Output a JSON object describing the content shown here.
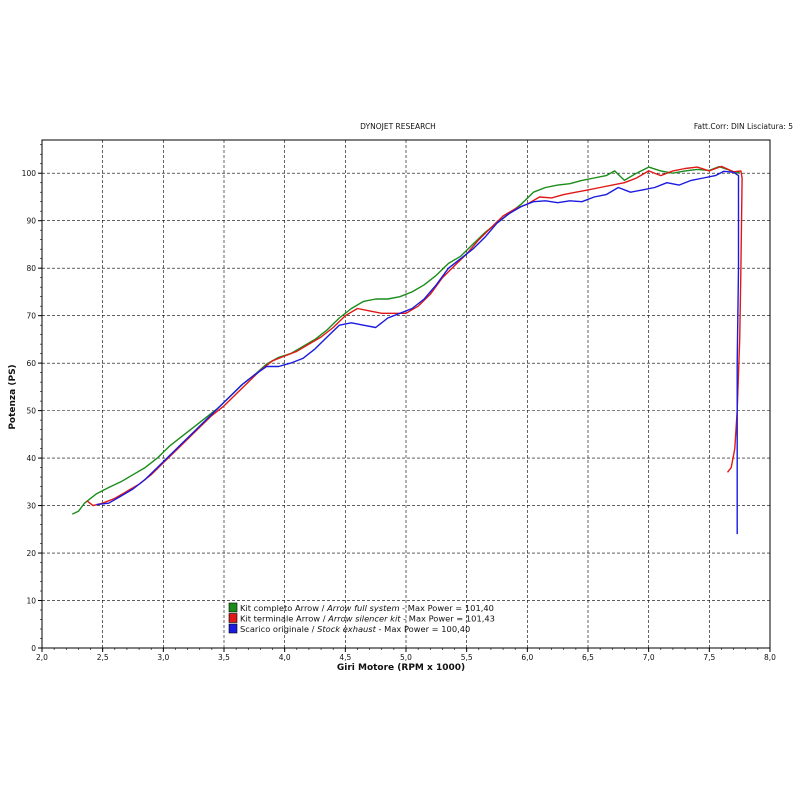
{
  "header": {
    "center": "DYNOJET RESEARCH",
    "right": "Fatt.Corr: DIN  Lisciatura: 5"
  },
  "chart_data": {
    "type": "line",
    "xlabel": "Giri Motore (RPM x 1000)",
    "ylabel": "Potenza (PS)",
    "xlim": [
      2.0,
      8.0
    ],
    "ylim": [
      0,
      107
    ],
    "x_ticks": [
      2.0,
      2.5,
      3.0,
      3.5,
      4.0,
      4.5,
      5.0,
      5.5,
      6.0,
      6.5,
      7.0,
      7.5,
      8.0
    ],
    "x_tick_labels": [
      "2,0",
      "2,5",
      "3,0",
      "3,5",
      "4,0",
      "4,5",
      "5,0",
      "5,5",
      "6,0",
      "6,5",
      "7,0",
      "7,5",
      "8,0"
    ],
    "y_ticks": [
      0,
      10,
      20,
      30,
      40,
      50,
      60,
      70,
      80,
      90,
      100
    ],
    "y_tick_labels": [
      "0",
      "10",
      "20",
      "30",
      "40",
      "50",
      "60",
      "70",
      "80",
      "90",
      "100"
    ],
    "grid": true,
    "legend_position": "bottom-center",
    "series": [
      {
        "color": "#1a8c1a",
        "legend_parts": [
          {
            "text": "Kit completo Arrow / ",
            "italic": false
          },
          {
            "text": "Arrow full system",
            "italic": true
          },
          {
            "text": " - Max Power = 101,40",
            "italic": false
          }
        ],
        "points": [
          [
            2.25,
            28.2
          ],
          [
            2.3,
            28.8
          ],
          [
            2.35,
            30.5
          ],
          [
            2.45,
            32.5
          ],
          [
            2.55,
            33.8
          ],
          [
            2.65,
            35.0
          ],
          [
            2.75,
            36.5
          ],
          [
            2.85,
            38.0
          ],
          [
            2.95,
            40.0
          ],
          [
            3.05,
            42.5
          ],
          [
            3.15,
            44.5
          ],
          [
            3.25,
            46.5
          ],
          [
            3.35,
            48.5
          ],
          [
            3.45,
            50.5
          ],
          [
            3.55,
            53.0
          ],
          [
            3.65,
            55.5
          ],
          [
            3.75,
            57.5
          ],
          [
            3.85,
            59.8
          ],
          [
            3.95,
            61.2
          ],
          [
            4.05,
            62.0
          ],
          [
            4.15,
            63.5
          ],
          [
            4.25,
            65.0
          ],
          [
            4.35,
            67.0
          ],
          [
            4.45,
            69.5
          ],
          [
            4.55,
            71.5
          ],
          [
            4.65,
            73.0
          ],
          [
            4.75,
            73.5
          ],
          [
            4.85,
            73.5
          ],
          [
            4.95,
            74.0
          ],
          [
            5.05,
            75.0
          ],
          [
            5.15,
            76.5
          ],
          [
            5.25,
            78.5
          ],
          [
            5.35,
            81.0
          ],
          [
            5.45,
            82.5
          ],
          [
            5.55,
            85.0
          ],
          [
            5.65,
            87.5
          ],
          [
            5.75,
            89.5
          ],
          [
            5.85,
            91.5
          ],
          [
            5.95,
            93.5
          ],
          [
            6.05,
            96.0
          ],
          [
            6.15,
            97.0
          ],
          [
            6.25,
            97.5
          ],
          [
            6.35,
            97.8
          ],
          [
            6.45,
            98.5
          ],
          [
            6.55,
            99.0
          ],
          [
            6.65,
            99.5
          ],
          [
            6.72,
            100.5
          ],
          [
            6.8,
            98.5
          ],
          [
            6.9,
            100.0
          ],
          [
            7.0,
            101.3
          ],
          [
            7.1,
            100.5
          ],
          [
            7.2,
            100.0
          ],
          [
            7.3,
            100.5
          ],
          [
            7.4,
            100.8
          ],
          [
            7.5,
            100.6
          ],
          [
            7.58,
            101.4
          ],
          [
            7.65,
            100.8
          ],
          [
            7.72,
            100.0
          ],
          [
            7.75,
            100.3
          ]
        ]
      },
      {
        "color": "#e01818",
        "legend_parts": [
          {
            "text": "Kit terminale Arrow / ",
            "italic": false
          },
          {
            "text": "Arrow silencer kit",
            "italic": true
          },
          {
            "text": " - Max Power = 101,43",
            "italic": false
          }
        ],
        "points": [
          [
            2.37,
            31.0
          ],
          [
            2.42,
            30.0
          ],
          [
            2.5,
            30.5
          ],
          [
            2.6,
            31.5
          ],
          [
            2.7,
            33.0
          ],
          [
            2.8,
            34.5
          ],
          [
            2.9,
            36.5
          ],
          [
            3.0,
            39.0
          ],
          [
            3.1,
            41.5
          ],
          [
            3.2,
            44.0
          ],
          [
            3.3,
            46.5
          ],
          [
            3.4,
            49.0
          ],
          [
            3.5,
            51.0
          ],
          [
            3.6,
            53.5
          ],
          [
            3.7,
            56.0
          ],
          [
            3.8,
            58.5
          ],
          [
            3.9,
            60.5
          ],
          [
            4.0,
            61.5
          ],
          [
            4.1,
            62.5
          ],
          [
            4.2,
            64.0
          ],
          [
            4.3,
            65.5
          ],
          [
            4.4,
            67.5
          ],
          [
            4.5,
            70.0
          ],
          [
            4.6,
            71.5
          ],
          [
            4.7,
            71.0
          ],
          [
            4.8,
            70.5
          ],
          [
            4.9,
            70.5
          ],
          [
            5.0,
            70.5
          ],
          [
            5.1,
            72.0
          ],
          [
            5.2,
            74.5
          ],
          [
            5.3,
            78.0
          ],
          [
            5.4,
            80.5
          ],
          [
            5.5,
            83.0
          ],
          [
            5.6,
            86.0
          ],
          [
            5.7,
            88.5
          ],
          [
            5.8,
            91.0
          ],
          [
            5.9,
            92.5
          ],
          [
            6.0,
            93.5
          ],
          [
            6.1,
            95.0
          ],
          [
            6.2,
            94.8
          ],
          [
            6.3,
            95.5
          ],
          [
            6.4,
            96.0
          ],
          [
            6.5,
            96.5
          ],
          [
            6.6,
            97.0
          ],
          [
            6.7,
            97.5
          ],
          [
            6.8,
            98.0
          ],
          [
            6.9,
            99.0
          ],
          [
            7.0,
            100.5
          ],
          [
            7.1,
            99.5
          ],
          [
            7.2,
            100.5
          ],
          [
            7.3,
            101.0
          ],
          [
            7.4,
            101.3
          ],
          [
            7.5,
            100.5
          ],
          [
            7.6,
            101.43
          ],
          [
            7.7,
            100.3
          ],
          [
            7.76,
            100.5
          ],
          [
            7.77,
            99.0
          ],
          [
            7.76,
            80.0
          ],
          [
            7.75,
            65.0
          ],
          [
            7.73,
            50.0
          ],
          [
            7.71,
            42.0
          ],
          [
            7.68,
            38.0
          ],
          [
            7.65,
            37.0
          ]
        ]
      },
      {
        "color": "#1a1ae0",
        "legend_parts": [
          {
            "text": "Scarico originale / ",
            "italic": false
          },
          {
            "text": "Stock exhaust",
            "italic": true
          },
          {
            "text": " - Max Power = 100,40",
            "italic": false
          }
        ],
        "points": [
          [
            2.45,
            30.2
          ],
          [
            2.55,
            30.5
          ],
          [
            2.65,
            32.0
          ],
          [
            2.75,
            33.5
          ],
          [
            2.85,
            35.5
          ],
          [
            2.95,
            38.0
          ],
          [
            3.05,
            40.5
          ],
          [
            3.15,
            43.0
          ],
          [
            3.25,
            45.5
          ],
          [
            3.35,
            48.0
          ],
          [
            3.45,
            50.5
          ],
          [
            3.55,
            53.0
          ],
          [
            3.65,
            55.5
          ],
          [
            3.75,
            57.5
          ],
          [
            3.85,
            59.3
          ],
          [
            3.95,
            59.3
          ],
          [
            4.05,
            60.0
          ],
          [
            4.15,
            61.0
          ],
          [
            4.25,
            63.0
          ],
          [
            4.35,
            65.5
          ],
          [
            4.45,
            68.0
          ],
          [
            4.55,
            68.5
          ],
          [
            4.65,
            68.0
          ],
          [
            4.75,
            67.5
          ],
          [
            4.85,
            69.5
          ],
          [
            4.95,
            70.5
          ],
          [
            5.05,
            71.5
          ],
          [
            5.15,
            73.5
          ],
          [
            5.25,
            76.5
          ],
          [
            5.35,
            80.0
          ],
          [
            5.45,
            82.0
          ],
          [
            5.55,
            84.0
          ],
          [
            5.65,
            86.5
          ],
          [
            5.75,
            89.5
          ],
          [
            5.85,
            91.5
          ],
          [
            5.95,
            93.0
          ],
          [
            6.05,
            94.0
          ],
          [
            6.15,
            94.2
          ],
          [
            6.25,
            93.8
          ],
          [
            6.35,
            94.2
          ],
          [
            6.45,
            94.0
          ],
          [
            6.55,
            95.0
          ],
          [
            6.65,
            95.5
          ],
          [
            6.75,
            97.0
          ],
          [
            6.85,
            96.0
          ],
          [
            6.95,
            96.5
          ],
          [
            7.05,
            97.0
          ],
          [
            7.15,
            98.0
          ],
          [
            7.25,
            97.5
          ],
          [
            7.35,
            98.5
          ],
          [
            7.45,
            99.0
          ],
          [
            7.55,
            99.5
          ],
          [
            7.62,
            100.4
          ],
          [
            7.7,
            100.2
          ],
          [
            7.74,
            99.5
          ],
          [
            7.74,
            80.0
          ],
          [
            7.73,
            60.0
          ],
          [
            7.73,
            40.0
          ],
          [
            7.73,
            24.0
          ]
        ]
      }
    ]
  }
}
